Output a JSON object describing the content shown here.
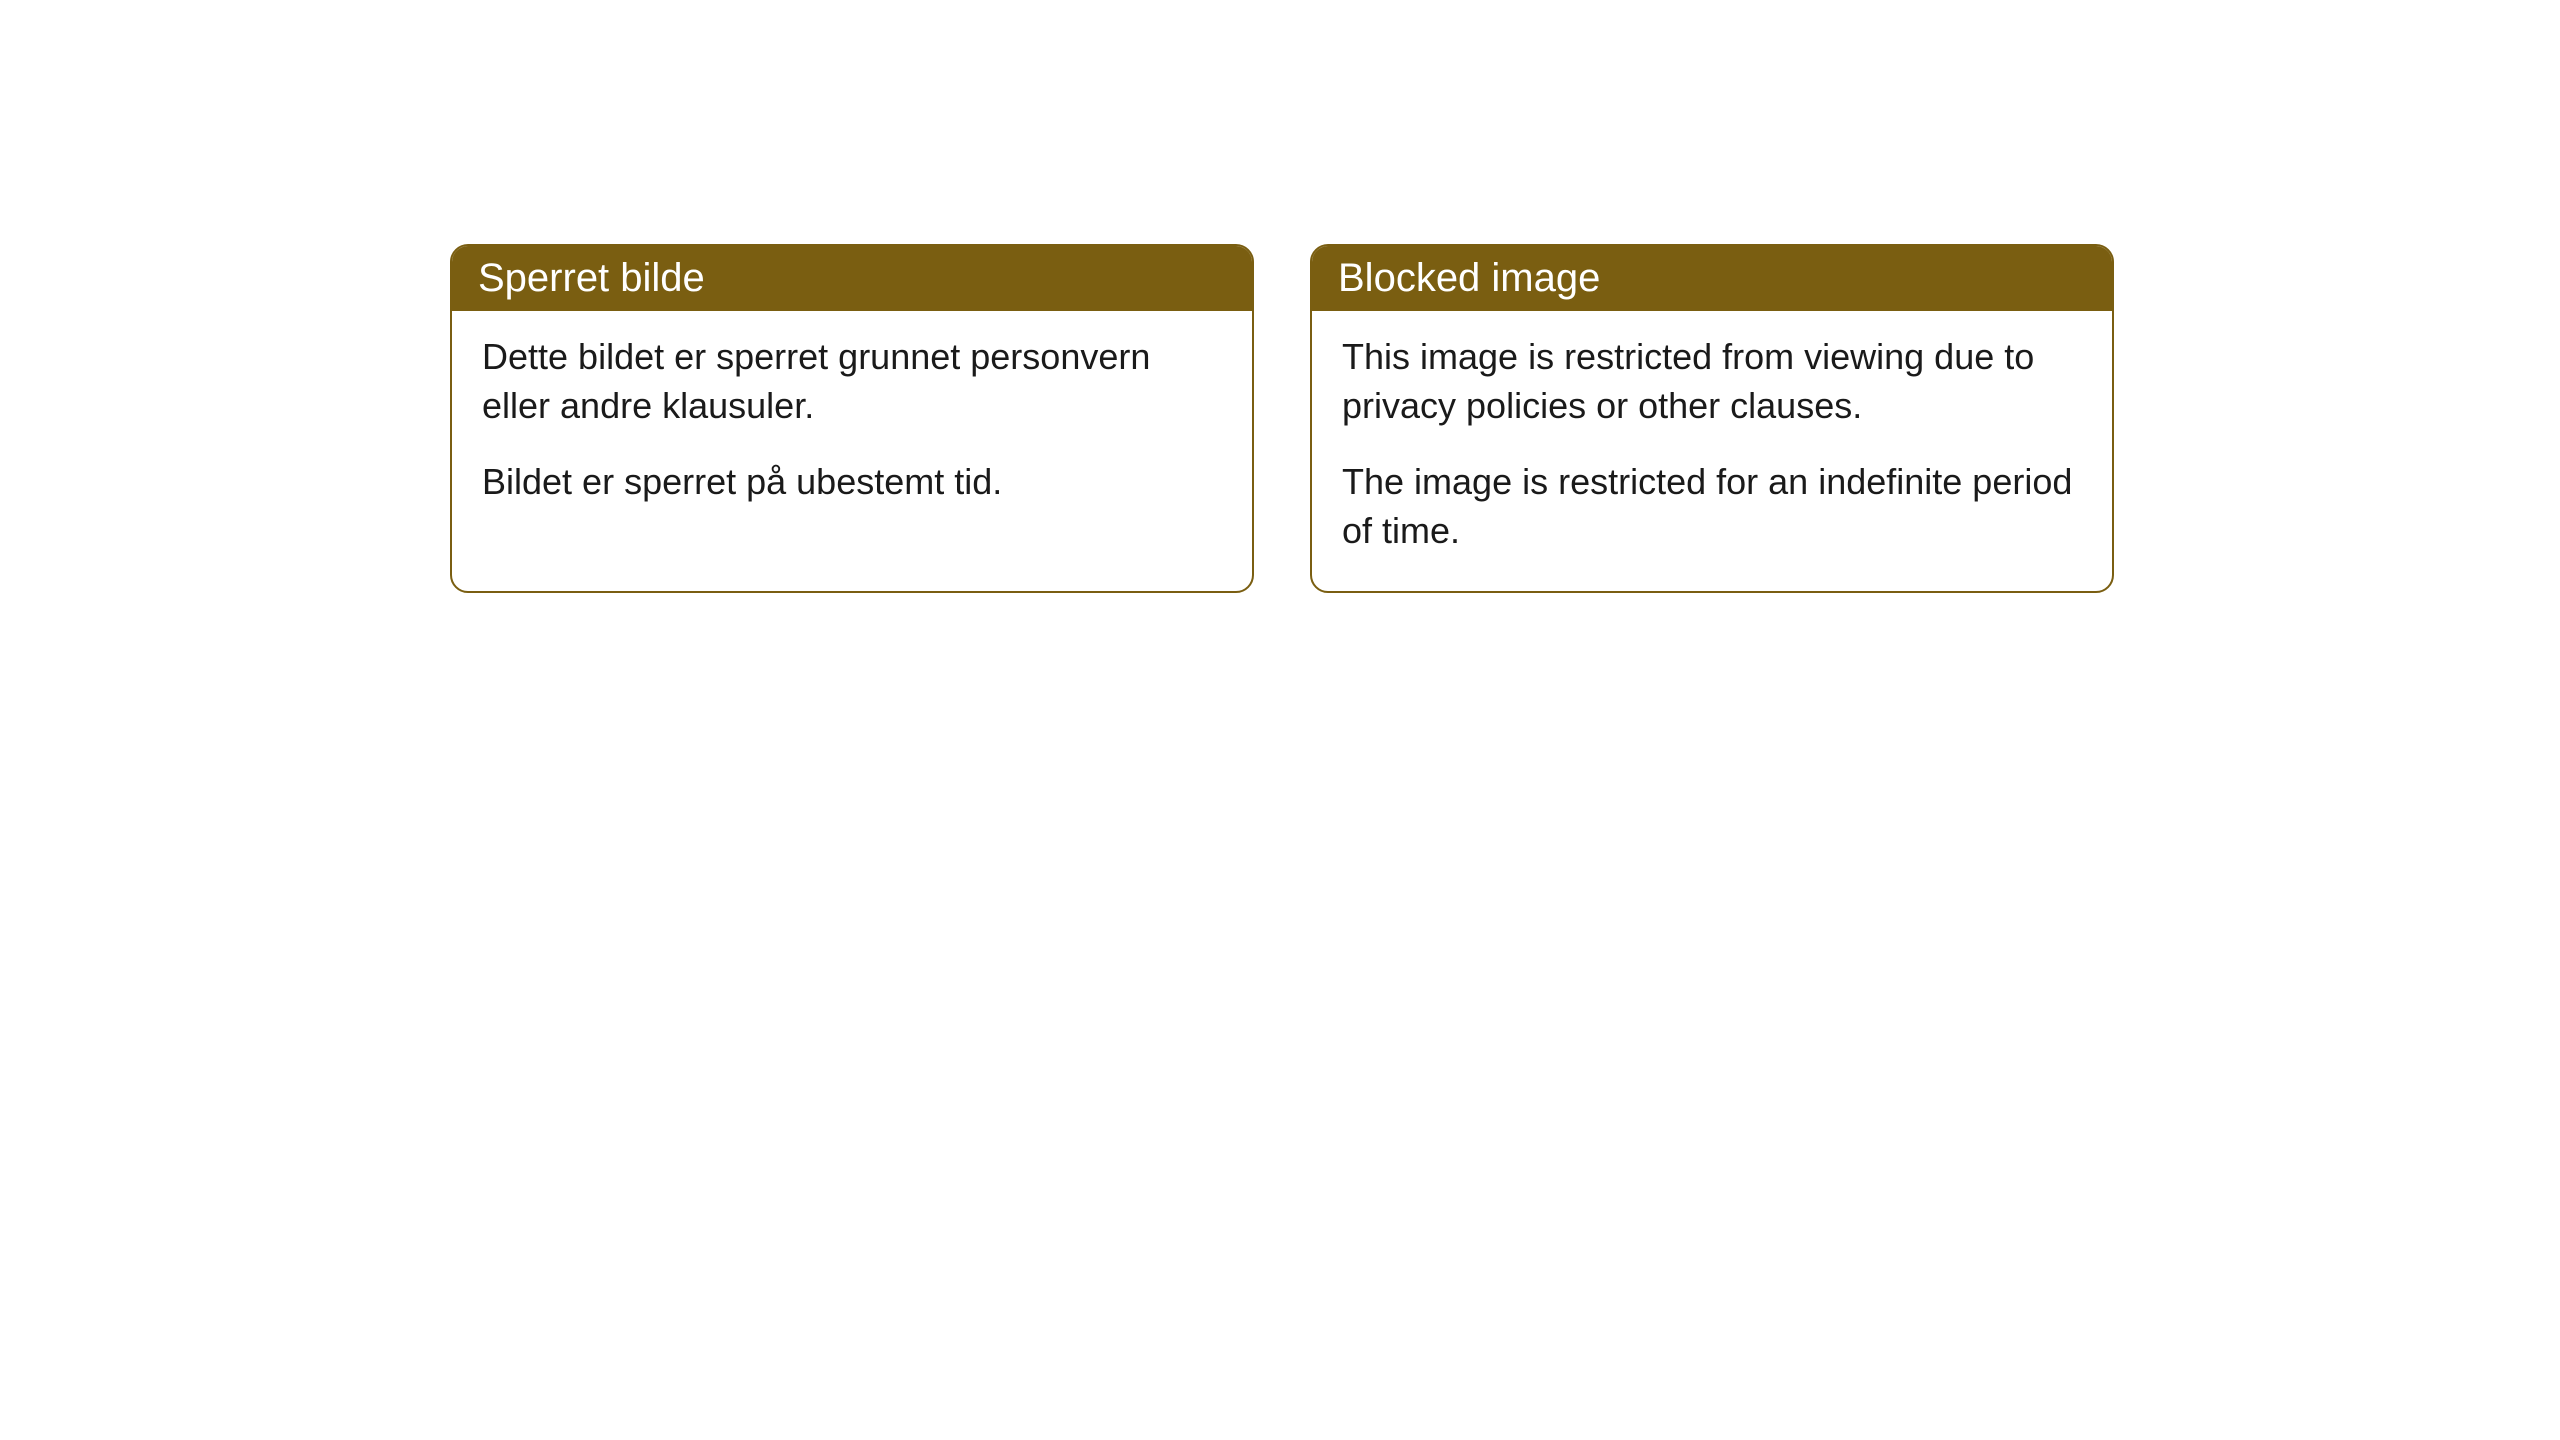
{
  "cards": [
    {
      "title": "Sperret bilde",
      "paragraph1": "Dette bildet er sperret grunnet personvern eller andre klausuler.",
      "paragraph2": "Bildet er sperret på ubestemt tid."
    },
    {
      "title": "Blocked image",
      "paragraph1": "This image is restricted from viewing due to privacy policies or other clauses.",
      "paragraph2": "The image is restricted for an indefinite period of time."
    }
  ],
  "style": {
    "header_background": "#7a5e11",
    "header_text_color": "#ffffff",
    "border_color": "#7a5e11",
    "body_background": "#ffffff",
    "body_text_color": "#1a1a1a",
    "border_radius": 18,
    "title_fontsize": 40,
    "body_fontsize": 36
  }
}
